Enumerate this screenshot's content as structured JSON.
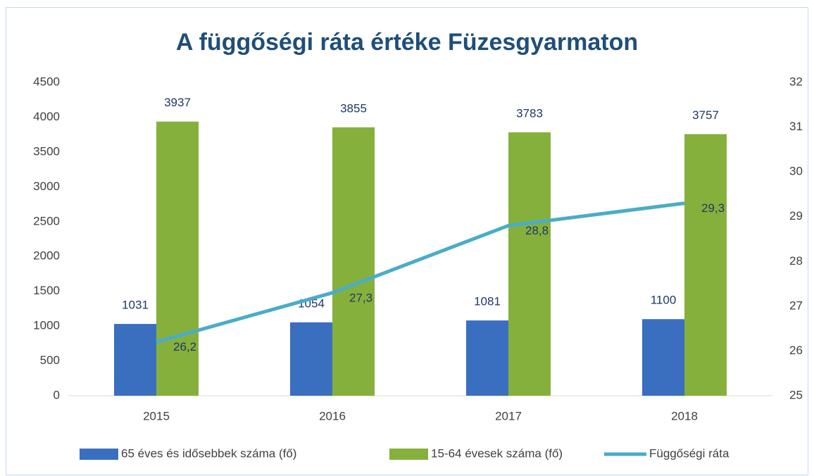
{
  "chart_data": {
    "type": "bar_line",
    "title": "A függőségi ráta értéke Füzesgyarmaton",
    "categories": [
      "2015",
      "2016",
      "2017",
      "2018"
    ],
    "series": [
      {
        "name": "65 éves és idősebbek száma (fő)",
        "type": "bar",
        "color": "#3a6fc0",
        "values": [
          1031,
          1054,
          1081,
          1100
        ]
      },
      {
        "name": "15-64 évesek száma (fő)",
        "type": "bar",
        "color": "#86b03c",
        "values": [
          3937,
          3855,
          3783,
          3757
        ]
      },
      {
        "name": "Függőségi ráta",
        "type": "line",
        "axis": "y2",
        "color": "#4bacc6",
        "values": [
          26.2,
          27.3,
          28.8,
          29.3
        ],
        "value_labels": [
          "26,2",
          "27,3",
          "28,8",
          "29,3"
        ]
      }
    ],
    "ylim": [
      0,
      4500
    ],
    "yticks": [
      0,
      500,
      1000,
      1500,
      2000,
      2500,
      3000,
      3500,
      4000,
      4500
    ],
    "y2lim": [
      25,
      32
    ],
    "y2ticks": [
      25,
      26,
      27,
      28,
      29,
      30,
      31,
      32
    ],
    "grid": false,
    "legend": "bottom"
  }
}
